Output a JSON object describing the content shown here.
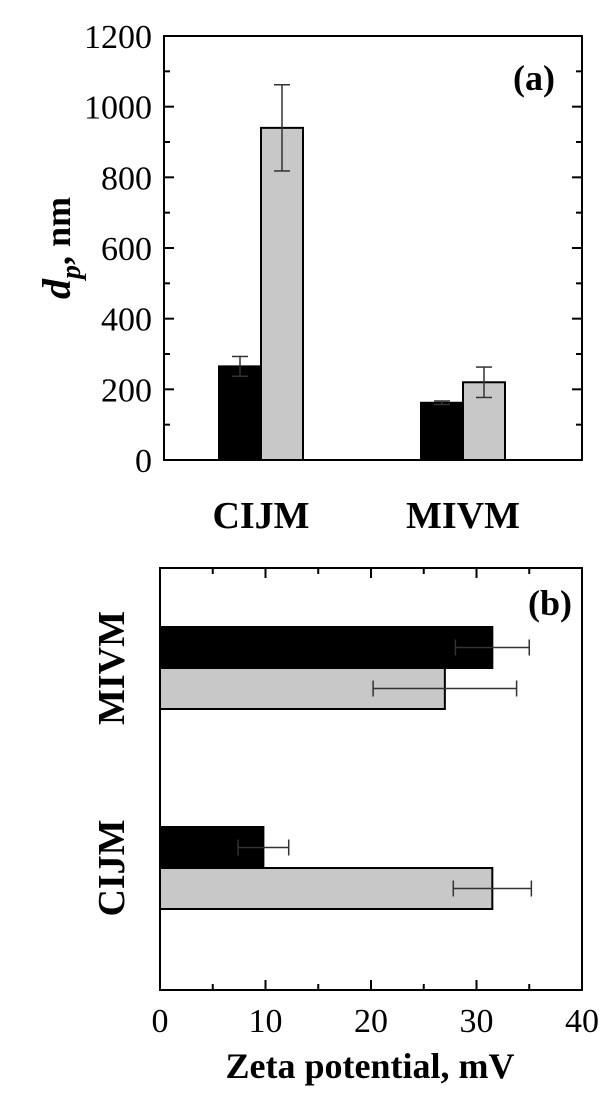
{
  "chart_data": [
    {
      "panel": "(a)",
      "type": "bar",
      "orientation": "vertical",
      "categories": [
        "CIJM",
        "MIVM"
      ],
      "series": [
        {
          "color": "#000000",
          "values": [
            265,
            162
          ],
          "errors": [
            28,
            5
          ]
        },
        {
          "color": "#c8c8c8",
          "values": [
            940,
            220
          ],
          "errors": [
            122,
            43
          ]
        }
      ],
      "ylabel_main": "d",
      "ylabel_sub": "p",
      "ylabel_rest": ", nm",
      "ylim": [
        0,
        1200
      ],
      "yticks": [
        "0",
        "200",
        "400",
        "600",
        "800",
        "1000",
        "1200"
      ],
      "grid": false,
      "legend": "none"
    },
    {
      "panel": "(b)",
      "type": "bar",
      "orientation": "horizontal",
      "categories": [
        "MIVM",
        "CIJM"
      ],
      "series": [
        {
          "color": "#000000",
          "values": [
            31.5,
            9.8
          ],
          "errors": [
            3.5,
            2.4
          ]
        },
        {
          "color": "#c8c8c8",
          "values": [
            27,
            31.5
          ],
          "errors": [
            6.8,
            3.7
          ]
        }
      ],
      "xlabel": "Zeta potential, mV",
      "xlim": [
        0,
        40
      ],
      "xticks": [
        "0",
        "10",
        "20",
        "30",
        "40"
      ],
      "grid": false,
      "legend": "none"
    }
  ]
}
